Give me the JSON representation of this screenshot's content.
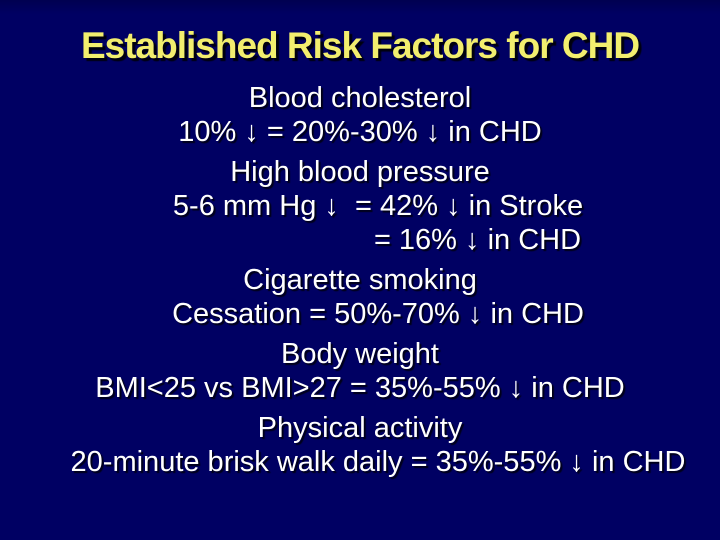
{
  "slide": {
    "title": "Established Risk Factors for CHD",
    "sections": [
      {
        "heading": "Blood cholesterol",
        "lines": [
          "10% ↓ = 20%-30% ↓ in CHD"
        ]
      },
      {
        "heading": "High blood pressure",
        "lines": [
          "5-6 mm Hg ↓  = 42% ↓ in Stroke",
          "= 16% ↓ in CHD"
        ]
      },
      {
        "heading": "Cigarette smoking",
        "lines": [
          "Cessation = 50%-70% ↓ in CHD"
        ]
      },
      {
        "heading": "Body weight",
        "lines": [
          "BMI<25 vs BMI>27 = 35%-55% ↓ in CHD"
        ]
      },
      {
        "heading": "Physical activity",
        "lines": [
          "20-minute brisk walk daily = 35%-55% ↓ in CHD"
        ]
      }
    ],
    "colors": {
      "background": "#000063",
      "title_text": "#F2EE6E",
      "body_text": "#FFFFFF"
    }
  }
}
